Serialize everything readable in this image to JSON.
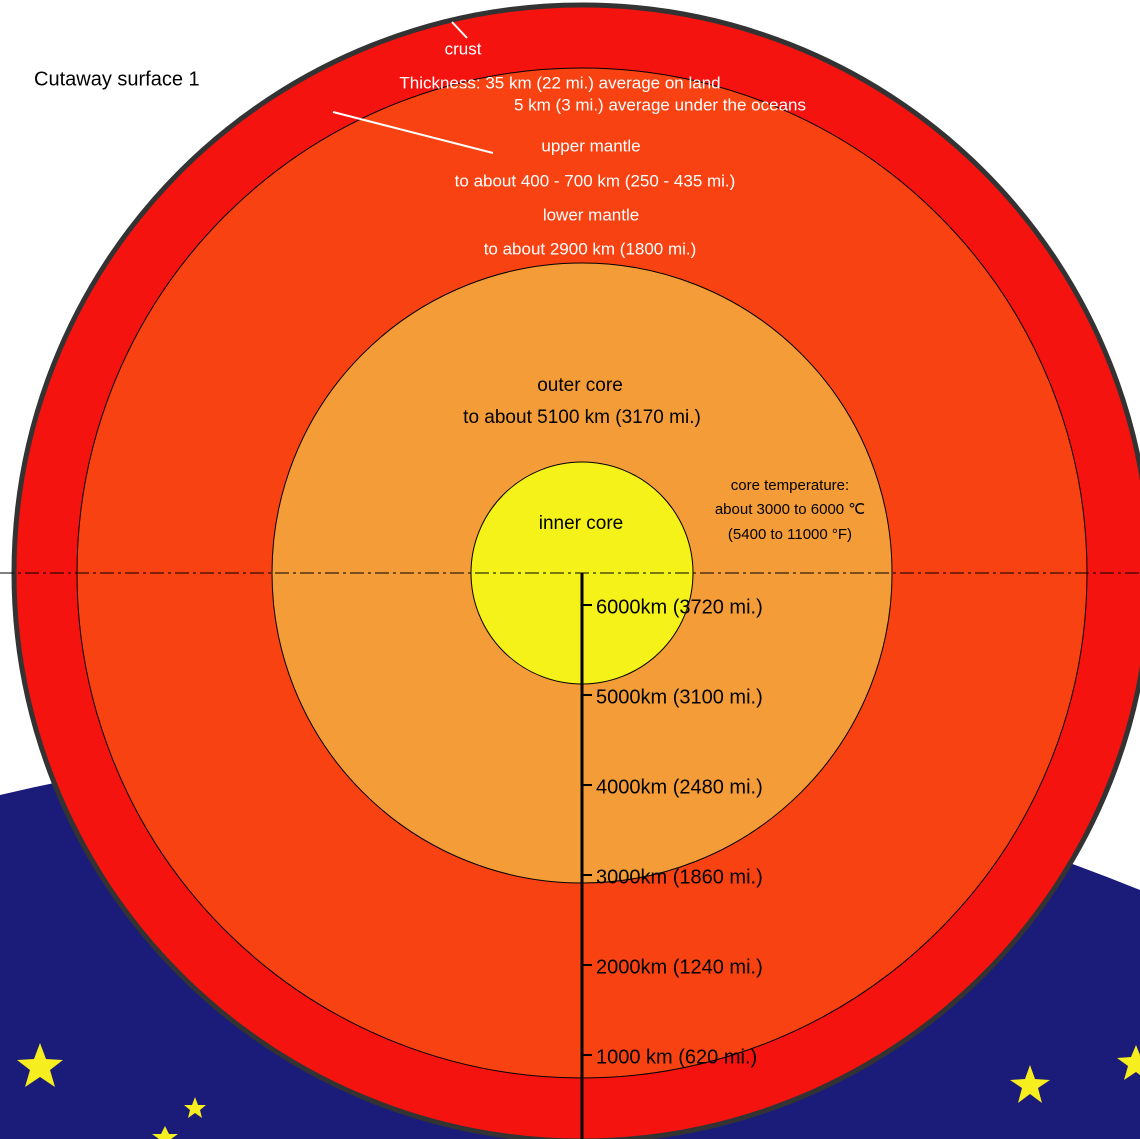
{
  "title": "Cutaway surface 1",
  "crust": {
    "name": "crust",
    "lines": [
      "Thickness: 35 km (22 mi.) average on land",
      "5 km (3 mi.) average under the oceans"
    ]
  },
  "upper_mantle": {
    "name": "upper mantle",
    "lines": [
      "to about 400 - 700 km (250 - 435 mi.)"
    ]
  },
  "lower_mantle": {
    "name": "lower mantle",
    "lines": [
      "to about 2900 km (1800 mi.)"
    ]
  },
  "outer_core": {
    "name": "outer core",
    "lines": [
      "to about 5100 km (3170 mi.)"
    ]
  },
  "inner_core": {
    "name": "inner core"
  },
  "temperature": [
    "core temperature:",
    "about 3000 to 6000 ℃",
    "(5400 to 11000 °F)"
  ],
  "scale": [
    "6000km (3720 mi.)",
    "5000km (3100 mi.)",
    "4000km (2480 mi.)",
    "3000km (1860 mi.)",
    "2000km (1240 mi.)",
    "1000 km (620 mi.)"
  ]
}
